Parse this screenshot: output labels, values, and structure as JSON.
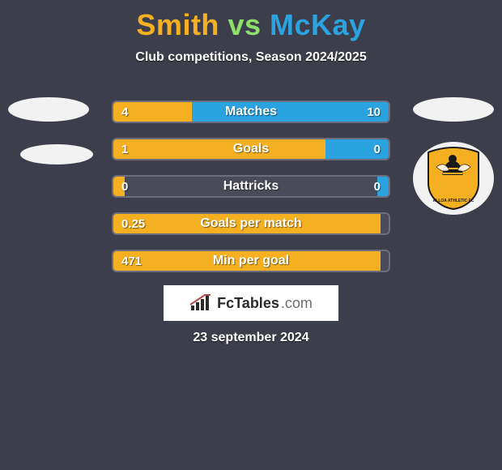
{
  "background_color": "#3d3e4b",
  "title": {
    "player1": "Smith",
    "vs": "vs",
    "player2": "McKay",
    "player1_color": "#f4b020",
    "vs_color": "#8fe06a",
    "player2_color": "#2aa3e0",
    "fontsize": 36
  },
  "subtitle": "Club competitions, Season 2024/2025",
  "team_badges": {
    "left_shape_color": "#f2f2f2",
    "right_shape_color": "#f2f2f2",
    "alloa_shield_fill": "#f4b020",
    "alloa_shield_text": "ALLOA ATHLETIC FC",
    "alloa_wasp_body": "#1a1a1a"
  },
  "bars_common": {
    "widthpx": 344,
    "heightpx": 28,
    "border_radius": 6,
    "left_color": "#f4b020",
    "right_color": "#2aa3e0",
    "bg_color": "#4a4b5a",
    "border_color": "#6c6d7d",
    "value_fontsize": 15,
    "label_fontsize": 16,
    "label_text_color": "#ffffff"
  },
  "stats": [
    {
      "label": "Matches",
      "left_value": "4",
      "right_value": "10",
      "left_pct": 28.6,
      "right_pct": 71.4
    },
    {
      "label": "Goals",
      "left_value": "1",
      "right_value": "0",
      "left_pct": 77.0,
      "right_pct": 23.0
    },
    {
      "label": "Hattricks",
      "left_value": "0",
      "right_value": "0",
      "left_pct": 4.0,
      "right_pct": 4.0
    },
    {
      "label": "Goals per match",
      "left_value": "0.25",
      "right_value": "",
      "left_pct": 97.0,
      "right_pct": 0.0
    },
    {
      "label": "Min per goal",
      "left_value": "471",
      "right_value": "",
      "left_pct": 97.0,
      "right_pct": 0.0
    }
  ],
  "brand": {
    "name": "FcTables",
    "tld": ".com"
  },
  "date": "23 september 2024"
}
